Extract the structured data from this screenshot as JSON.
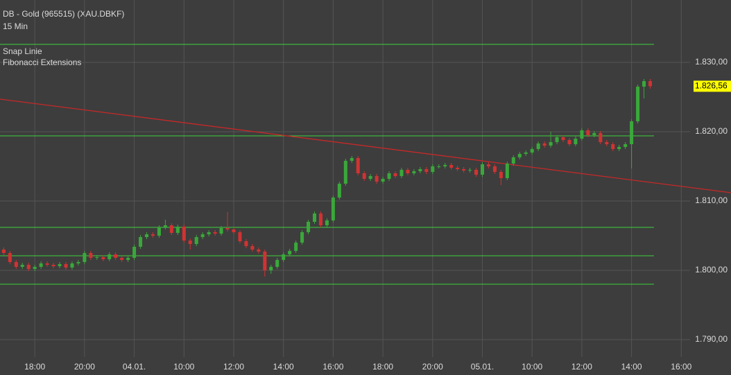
{
  "chart_data": {
    "type": "candlestick",
    "title": "DB - Gold (965515) (XAU.DBKF)",
    "subtitle": "15 Min",
    "x": [
      -1.25,
      -1,
      -0.75,
      -0.5,
      -0.25,
      0,
      0.25,
      0.5,
      0.75,
      1,
      1.25,
      1.5,
      1.75,
      2,
      2.25,
      2.5,
      2.75,
      3,
      3.25,
      3.5,
      3.75,
      4,
      4.25,
      4.5,
      4.75,
      5,
      5.25,
      5.5,
      5.75,
      6,
      6.25,
      6.5,
      6.75,
      7,
      7.25,
      7.5,
      7.75,
      8,
      8.25,
      8.5,
      8.75,
      9,
      9.25,
      9.5,
      9.75,
      10,
      10.25,
      10.5,
      10.75,
      11,
      11.25,
      11.5,
      11.75,
      12,
      12.25,
      12.5,
      12.75,
      13,
      13.25,
      13.5,
      13.75,
      14,
      14.25,
      14.5,
      14.75,
      15,
      15.25,
      15.5,
      15.75,
      16,
      16.25,
      16.5,
      16.75,
      17,
      17.25,
      17.5,
      17.75,
      18,
      18.25,
      18.5,
      18.75,
      19,
      19.25,
      19.5,
      19.75,
      20,
      20.25,
      20.5,
      20.75,
      21,
      21.25,
      21.5,
      21.75,
      22,
      22.25,
      22.5,
      22.75,
      23,
      23.25,
      23.5,
      23.75,
      24,
      24.25,
      24.5,
      24.75
    ],
    "open": [
      1803,
      1802.5,
      1801.2,
      1800.5,
      1800.8,
      1800.2,
      1800.5,
      1801,
      1800.8,
      1800.6,
      1800.9,
      1800.4,
      1801,
      1801.2,
      1802.5,
      1801.8,
      1801.9,
      1801.6,
      1802.3,
      1801.8,
      1801.5,
      1801.8,
      1803.4,
      1804.8,
      1805.2,
      1805,
      1806.2,
      1806.5,
      1805.4,
      1806.3,
      1804.3,
      1803.8,
      1804.8,
      1805.2,
      1805.5,
      1805.3,
      1806.1,
      1805.9,
      1805.5,
      1804.2,
      1803.5,
      1803,
      1802.7,
      1800,
      1800.5,
      1801.5,
      1802.3,
      1802.8,
      1804,
      1805.5,
      1807,
      1808.2,
      1806.5,
      1807.2,
      1810.5,
      1812.5,
      1815.8,
      1816.2,
      1814,
      1813.2,
      1813.6,
      1812.8,
      1813.2,
      1814,
      1813.6,
      1814.5,
      1814,
      1814.3,
      1814.6,
      1814.2,
      1815,
      1815,
      1815.2,
      1814.8,
      1814.6,
      1814.4,
      1814.5,
      1813.8,
      1815.3,
      1815,
      1814.2,
      1813.3,
      1815.4,
      1816.3,
      1816.8,
      1817,
      1817.5,
      1818.3,
      1818,
      1818.5,
      1819.2,
      1818.8,
      1818.2,
      1819,
      1820.2,
      1819.5,
      1819.8,
      1818.5,
      1818.2,
      1817.5,
      1817.8,
      1818.2,
      1821.5,
      1826.5,
      1827.3
    ],
    "high": [
      1803.3,
      1802.8,
      1801.5,
      1801.1,
      1801.1,
      1800.8,
      1801.3,
      1801.3,
      1801.1,
      1801.2,
      1801.2,
      1801.3,
      1801.5,
      1802.8,
      1802.8,
      1802.2,
      1802.2,
      1802.6,
      1802.6,
      1802.1,
      1802.1,
      1803.7,
      1805.1,
      1805.5,
      1805.5,
      1806.5,
      1807.3,
      1806.8,
      1806.6,
      1806.6,
      1804.6,
      1805.1,
      1805.5,
      1805.8,
      1805.8,
      1806.4,
      1808.4,
      1806.2,
      1805.8,
      1804.5,
      1803.8,
      1803.3,
      1803,
      1800.8,
      1801.8,
      1802.6,
      1803.1,
      1804.3,
      1805.8,
      1807.3,
      1808.5,
      1808.5,
      1807.5,
      1810.8,
      1812.8,
      1816.1,
      1816.5,
      1816.5,
      1814.3,
      1813.9,
      1813.9,
      1813.5,
      1814.3,
      1814.3,
      1814.8,
      1814.8,
      1814.6,
      1814.9,
      1814.9,
      1815.3,
      1815.3,
      1815.5,
      1815.5,
      1815.1,
      1814.9,
      1814.8,
      1814.8,
      1815.6,
      1815.6,
      1815.3,
      1814.5,
      1815.7,
      1816.6,
      1817.1,
      1817.3,
      1817.8,
      1818.6,
      1818.6,
      1820,
      1819.5,
      1819.5,
      1819.1,
      1819.3,
      1820.5,
      1820.5,
      1820.1,
      1820.1,
      1818.8,
      1818.5,
      1818.1,
      1818.5,
      1821.8,
      1826.8,
      1827.6,
      1827.6
    ],
    "low": [
      1802.2,
      1800.9,
      1800.2,
      1800.2,
      1799.9,
      1799.9,
      1800.2,
      1800.5,
      1800.3,
      1800.3,
      1800.1,
      1800.1,
      1800.7,
      1800.9,
      1801.5,
      1801.5,
      1801.3,
      1801.3,
      1801.5,
      1801.2,
      1801.2,
      1801.5,
      1803.1,
      1804.5,
      1804.7,
      1804.7,
      1805.9,
      1805.1,
      1805.1,
      1804,
      1803,
      1803.5,
      1804.5,
      1804.9,
      1805,
      1805,
      1805.6,
      1805.2,
      1803.9,
      1803.2,
      1802.7,
      1802.4,
      1799.1,
      1799.5,
      1800.2,
      1801.2,
      1802,
      1802.5,
      1803.7,
      1805.2,
      1806.7,
      1806.2,
      1806.2,
      1806.9,
      1810.2,
      1812.2,
      1815.5,
      1813.7,
      1812.9,
      1812.9,
      1812.5,
      1812.5,
      1812.9,
      1813.3,
      1813.3,
      1813.7,
      1813.7,
      1814,
      1813.9,
      1813.9,
      1814.7,
      1814.7,
      1814.5,
      1814.3,
      1814.1,
      1814.1,
      1813.5,
      1813.5,
      1814.7,
      1813.9,
      1812.3,
      1813,
      1815.1,
      1816,
      1816.5,
      1816.7,
      1817.2,
      1817.7,
      1817.7,
      1818.2,
      1818.5,
      1817.9,
      1817.9,
      1818.7,
      1819.2,
      1819.2,
      1818.2,
      1817.9,
      1817.2,
      1817.2,
      1817.5,
      1814.7,
      1821.2,
      1824.8,
      1826.2
    ],
    "close": [
      1802.5,
      1801.2,
      1800.5,
      1800.8,
      1800.2,
      1800.5,
      1801,
      1800.8,
      1800.6,
      1800.9,
      1800.4,
      1801,
      1801.2,
      1802.5,
      1801.8,
      1801.9,
      1801.6,
      1802.3,
      1801.8,
      1801.5,
      1801.8,
      1803.4,
      1804.8,
      1805.2,
      1805,
      1806.2,
      1806.5,
      1805.4,
      1806.3,
      1804.3,
      1803.8,
      1804.8,
      1805.2,
      1805.5,
      1805.3,
      1806.1,
      1805.9,
      1805.5,
      1804.2,
      1803.5,
      1803,
      1802.7,
      1800,
      1800.5,
      1801.5,
      1802.3,
      1802.8,
      1804,
      1805.5,
      1807,
      1808.2,
      1806.5,
      1807.2,
      1810.5,
      1812.5,
      1815.8,
      1816.2,
      1814,
      1813.2,
      1813.6,
      1812.8,
      1813.2,
      1814,
      1813.6,
      1814.5,
      1814,
      1814.3,
      1814.6,
      1814.2,
      1815,
      1815,
      1815.2,
      1814.8,
      1814.6,
      1814.4,
      1814.5,
      1813.8,
      1815.3,
      1815,
      1814.2,
      1813.3,
      1815.4,
      1816.3,
      1816.8,
      1817,
      1817.5,
      1818.3,
      1818,
      1818.5,
      1819.2,
      1818.8,
      1818.2,
      1819,
      1820.2,
      1819.5,
      1819.8,
      1818.5,
      1818.2,
      1817.5,
      1817.8,
      1818.2,
      1821.5,
      1826.5,
      1827.3,
      1826.56
    ],
    "up_color": "#3aa83a",
    "down_color": "#d23232",
    "xlim": [
      -1.4,
      28
    ],
    "xticks": [
      {
        "value": 0,
        "label": "18:00"
      },
      {
        "value": 2,
        "label": "20:00"
      },
      {
        "value": 4,
        "label": "04.01."
      },
      {
        "value": 6,
        "label": "10:00"
      },
      {
        "value": 8,
        "label": "12:00"
      },
      {
        "value": 10,
        "label": "14:00"
      },
      {
        "value": 12,
        "label": "16:00"
      },
      {
        "value": 14,
        "label": "18:00"
      },
      {
        "value": 16,
        "label": "20:00"
      },
      {
        "value": 18,
        "label": "05.01."
      },
      {
        "value": 20,
        "label": "10:00"
      },
      {
        "value": 22,
        "label": "12:00"
      },
      {
        "value": 24,
        "label": "14:00"
      },
      {
        "value": 26,
        "label": "16:00"
      }
    ],
    "ylim": [
      1787.5,
      1839
    ],
    "yticks": [
      {
        "value": 1790,
        "label": "1.790,00"
      },
      {
        "value": 1800,
        "label": "1.800,00"
      },
      {
        "value": 1810,
        "label": "1.810,00"
      },
      {
        "value": 1820,
        "label": "1.820,00"
      },
      {
        "value": 1830,
        "label": "1.830,00"
      }
    ],
    "grid": true,
    "last_price": {
      "value": 1826.56,
      "label": "1.826,56",
      "color": "#ffff00"
    },
    "snap_line": {
      "name": "Snap Linie",
      "color": "#c82828",
      "x": [
        -1.4,
        28
      ],
      "y": [
        1824.7,
        1811.2
      ]
    },
    "fibonacci": {
      "name": "Fibonacci Extensions",
      "color": "#3cd23c",
      "x": [
        -1.4,
        24.9
      ],
      "levels": [
        1832.6,
        1819.4,
        1806.2,
        1802.1,
        1798.0
      ]
    }
  }
}
